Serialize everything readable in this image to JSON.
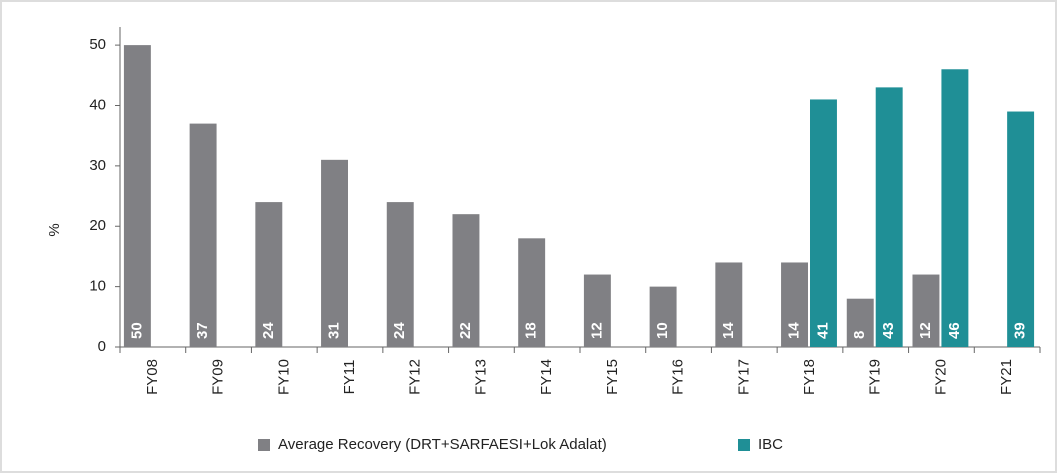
{
  "chart_data": {
    "type": "bar",
    "y_label": "%",
    "categories": [
      "FY08",
      "FY09",
      "FY10",
      "FY11",
      "FY12",
      "FY13",
      "FY14",
      "FY15",
      "FY16",
      "FY17",
      "FY18",
      "FY19",
      "FY20",
      "FY21"
    ],
    "series": [
      {
        "name": "Average Recovery (DRT+SARFAESI+Lok Adalat)",
        "color": "#808084",
        "values": [
          50,
          37,
          24,
          31,
          24,
          22,
          18,
          12,
          10,
          14,
          14,
          8,
          12,
          null
        ]
      },
      {
        "name": "IBC",
        "color": "#1f8f96",
        "values": [
          null,
          null,
          null,
          null,
          null,
          null,
          null,
          null,
          null,
          null,
          41,
          43,
          46,
          39
        ]
      }
    ],
    "ylim": [
      0,
      53
    ],
    "yticks": [
      0,
      10,
      20,
      30,
      40,
      50
    ]
  }
}
